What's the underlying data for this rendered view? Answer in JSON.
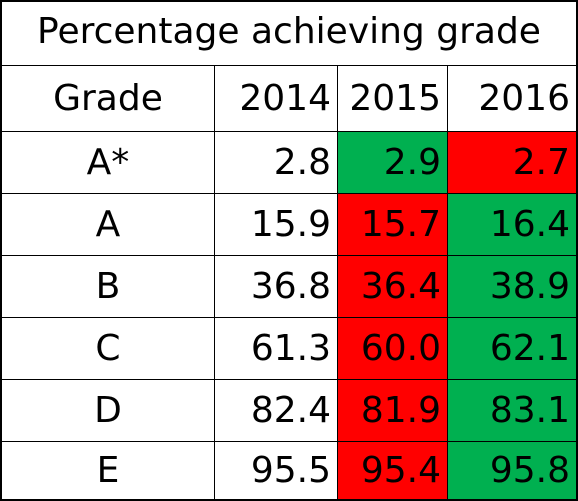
{
  "chart_data": {
    "type": "table",
    "title": "Percentage achieving grade",
    "columns": [
      "Grade",
      "2014",
      "2015",
      "2016"
    ],
    "rows": [
      {
        "grade": "A*",
        "values": [
          "2.8",
          "2.9",
          "2.7"
        ],
        "fills": [
          "none",
          "green",
          "red"
        ]
      },
      {
        "grade": "A",
        "values": [
          "15.9",
          "15.7",
          "16.4"
        ],
        "fills": [
          "none",
          "red",
          "green"
        ]
      },
      {
        "grade": "B",
        "values": [
          "36.8",
          "36.4",
          "38.9"
        ],
        "fills": [
          "none",
          "red",
          "green"
        ]
      },
      {
        "grade": "C",
        "values": [
          "61.3",
          "60.0",
          "62.1"
        ],
        "fills": [
          "none",
          "red",
          "green"
        ]
      },
      {
        "grade": "D",
        "values": [
          "82.4",
          "81.9",
          "83.1"
        ],
        "fills": [
          "none",
          "red",
          "green"
        ]
      },
      {
        "grade": "E",
        "values": [
          "95.5",
          "95.4",
          "95.8"
        ],
        "fills": [
          "none",
          "red",
          "green"
        ]
      }
    ]
  },
  "colors": {
    "green": "#00b050",
    "red": "#ff0000",
    "none": "#ffffff"
  }
}
